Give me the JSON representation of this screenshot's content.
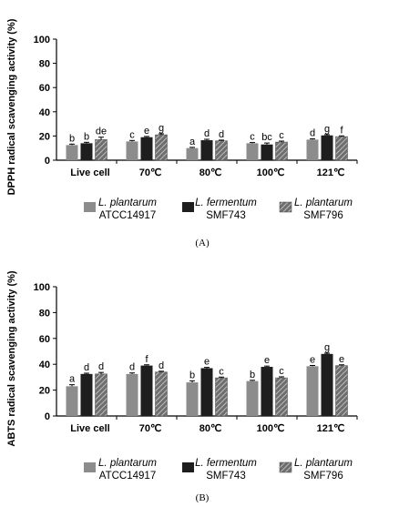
{
  "colors": {
    "c1": "#8c8c8c",
    "c2": "#1e1e1e",
    "c3_hatch_bg": "#6e6e6e",
    "c3_hatch_line": "#cfcfcf"
  },
  "legend": [
    {
      "species": "L. plantarum",
      "strain": "ATCC14917"
    },
    {
      "species": "L. fermentum",
      "strain": "SMF743"
    },
    {
      "species": "L. plantarum",
      "strain": "SMF796"
    }
  ],
  "chart_data": [
    {
      "type": "bar",
      "panel": "(A)",
      "ylabel": "DPPH radical scavenging activity (%)",
      "ylim": [
        0,
        100
      ],
      "yticks": [
        "0",
        "20",
        "40",
        "60",
        "80",
        "100"
      ],
      "categories": [
        "Live cell",
        "70℃",
        "80℃",
        "100℃",
        "121℃"
      ],
      "series": [
        {
          "name": "L. plantarum ATCC14917",
          "values": [
            12.5,
            15.5,
            10.0,
            14.0,
            17.0
          ],
          "errors": [
            0.8,
            0.8,
            0.6,
            0.6,
            0.6
          ],
          "labels": [
            "b",
            "c",
            "a",
            "c",
            "d"
          ]
        },
        {
          "name": "L. fermentum SMF743",
          "values": [
            14.0,
            19.0,
            16.5,
            13.0,
            20.5
          ],
          "errors": [
            0.8,
            0.6,
            0.8,
            1.2,
            0.6
          ],
          "labels": [
            "b",
            "e",
            "d",
            "bc",
            "g"
          ]
        },
        {
          "name": "L. plantarum SMF796",
          "values": [
            17.0,
            21.0,
            16.0,
            15.0,
            19.5
          ],
          "errors": [
            2.0,
            0.8,
            0.6,
            0.8,
            0.6
          ],
          "labels": [
            "de",
            "g",
            "d",
            "c",
            "f"
          ]
        }
      ]
    },
    {
      "type": "bar",
      "panel": "(B)",
      "ylabel": "ABTS radical scavenging activity (%)",
      "ylim": [
        0,
        100
      ],
      "yticks": [
        "0",
        "20",
        "40",
        "60",
        "80",
        "100"
      ],
      "categories": [
        "Live cell",
        "70℃",
        "80℃",
        "100℃",
        "121℃"
      ],
      "series": [
        {
          "name": "L. plantarum ATCC14917",
          "values": [
            23.0,
            32.5,
            26.0,
            27.0,
            38.5
          ],
          "errors": [
            1.2,
            0.8,
            1.2,
            0.6,
            0.6
          ],
          "labels": [
            "a",
            "d",
            "b",
            "b",
            "e"
          ]
        },
        {
          "name": "L. fermentum SMF743",
          "values": [
            32.5,
            39.0,
            37.0,
            38.0,
            48.0
          ],
          "errors": [
            0.6,
            0.6,
            0.6,
            0.6,
            0.6
          ],
          "labels": [
            "d",
            "f",
            "e",
            "e",
            "g"
          ]
        },
        {
          "name": "L. plantarum SMF796",
          "values": [
            32.5,
            34.0,
            29.5,
            29.5,
            39.0
          ],
          "errors": [
            1.2,
            0.6,
            0.6,
            0.8,
            0.6
          ],
          "labels": [
            "d",
            "d",
            "c",
            "c",
            "e"
          ]
        }
      ]
    }
  ]
}
